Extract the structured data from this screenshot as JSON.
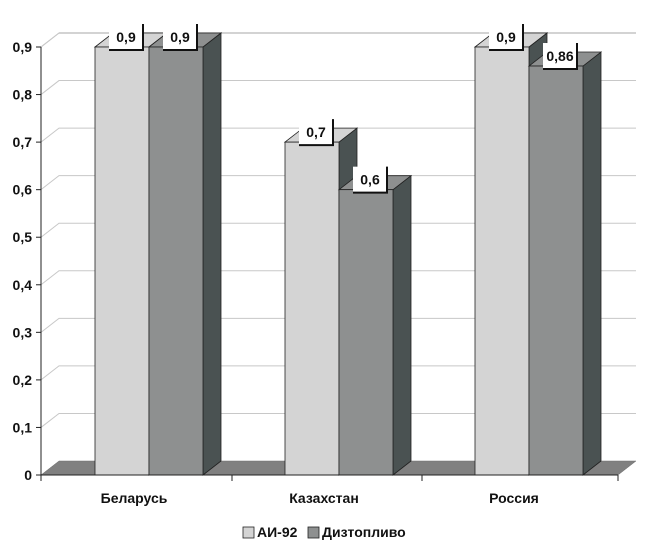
{
  "chart_data": {
    "type": "bar",
    "title": "",
    "xlabel": "",
    "ylabel": "",
    "categories": [
      "Беларусь",
      "Казахстан",
      "Россия"
    ],
    "series": [
      {
        "name": "АИ-92",
        "values": [
          0.9,
          0.7,
          0.9
        ],
        "labels": [
          "0,9",
          "0,7",
          "0,9"
        ],
        "color": "#d4d4d4"
      },
      {
        "name": "Дизтопливо",
        "values": [
          0.9,
          0.6,
          0.86
        ],
        "labels": [
          "0,9",
          "0,6",
          "0,86"
        ],
        "color": "#8e9090"
      }
    ],
    "ylim": [
      0,
      0.9
    ],
    "yticks": [
      0,
      0.1,
      0.2,
      0.3,
      0.4,
      0.5,
      0.6,
      0.7,
      0.8,
      0.9
    ],
    "ytick_labels": [
      "0",
      "0,1",
      "0,2",
      "0,3",
      "0,4",
      "0,5",
      "0,6",
      "0,7",
      "0,8",
      "0,9"
    ],
    "grid": true,
    "legend_position": "bottom",
    "style": "3d-clustered-column",
    "colors": {
      "floor": "#808080",
      "side": "#4a5252",
      "wall_line": "#c8c8c8"
    }
  }
}
